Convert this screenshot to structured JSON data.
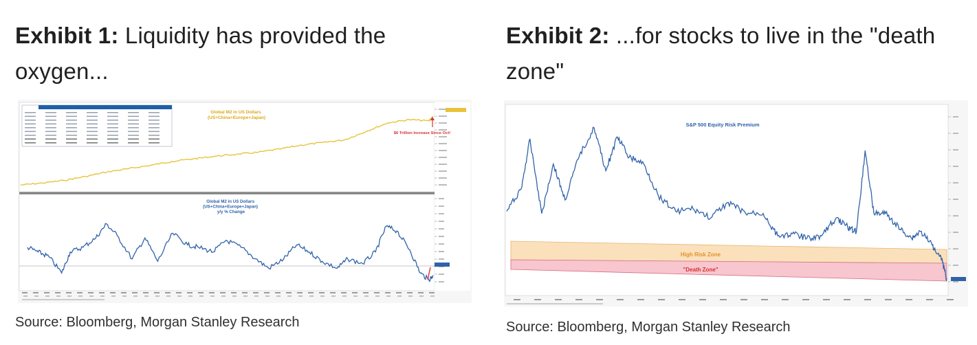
{
  "exhibit1": {
    "label": "Exhibit 1:",
    "title": "Liquidity has provided the oxygen...",
    "source": "Source: Bloomberg, Morgan Stanley Research"
  },
  "exhibit2": {
    "label": "Exhibit 2:",
    "title": "...for stocks to live in the \"death zone\"",
    "source": "Source: Bloomberg, Morgan Stanley Research"
  },
  "colors": {
    "m2_level": "#e8c33a",
    "m2_yoy": "#2f62a8",
    "erp": "#2f62a8",
    "high_risk_fill": "#fbe0bc",
    "death_fill": "#f7c6cf",
    "annotation_red": "#d9302f",
    "header_blue": "#1f5fa8"
  },
  "chart_data": [
    {
      "id": "global-m2-level",
      "type": "line",
      "title": "Global M2 in US Dollars (US+China+Europe+Japan)",
      "annotation": "$6 Trillion Increase Since Oct!",
      "x": [
        2004,
        2005,
        2006,
        2007,
        2008,
        2009,
        2010,
        2011,
        2012,
        2013,
        2014,
        2015,
        2016,
        2017,
        2018,
        2019,
        2020,
        2021,
        2022,
        2022.9,
        2023.1
      ],
      "series": [
        {
          "values": [
            20000,
            21500,
            23500,
            26500,
            30000,
            32500,
            35000,
            38000,
            40000,
            42000,
            43500,
            45000,
            47500,
            50500,
            52500,
            54500,
            61000,
            67500,
            70000,
            69000,
            72500
          ]
        }
      ],
      "ylim": [
        18000,
        80000
      ]
    },
    {
      "id": "global-m2-yoy",
      "type": "line",
      "title": "Global M2 in US Dollars (US+China+Europe+Japan) y/y % Change",
      "x": [
        2004,
        2004.5,
        2005,
        2005.6,
        2006,
        2006.6,
        2007.2,
        2007.7,
        2008.2,
        2008.9,
        2009.5,
        2010.1,
        2010.8,
        2011.5,
        2012.0,
        2012.7,
        2013.3,
        2014.0,
        2014.7,
        2015.3,
        2016.0,
        2016.6,
        2017.2,
        2017.8,
        2018.5,
        2019.0,
        2019.7,
        2020.3,
        2020.8,
        2021.3,
        2021.9,
        2022.4,
        2022.8,
        2023.0
      ],
      "series": [
        {
          "values": [
            8,
            6,
            4,
            -3,
            6,
            8,
            12,
            18,
            13,
            3,
            12,
            2,
            14,
            9,
            8,
            6,
            11,
            8,
            3,
            -1,
            3,
            9,
            6,
            2,
            -1,
            3,
            1,
            6,
            17,
            15,
            7,
            -3,
            -6,
            -4
          ]
        }
      ],
      "ylim": [
        -10,
        30
      ]
    },
    {
      "id": "sp500-erp",
      "type": "line",
      "title": "S&P 500 Equity Risk Premium",
      "annotations": [
        "High Risk Zone",
        "\"Death Zone\""
      ],
      "x": [
        2008.0,
        2008.5,
        2008.8,
        2009.2,
        2009.6,
        2010.0,
        2010.5,
        2011.0,
        2011.4,
        2011.8,
        2012.2,
        2012.7,
        2013.2,
        2013.8,
        2014.4,
        2015.0,
        2015.6,
        2016.2,
        2016.8,
        2017.3,
        2017.8,
        2018.3,
        2018.8,
        2019.3,
        2019.7,
        2020.0,
        2020.3,
        2020.6,
        2021.0,
        2021.5,
        2021.9,
        2022.2,
        2022.6,
        2022.9,
        2023.1
      ],
      "series": [
        {
          "values": [
            4.5,
            5.5,
            7.7,
            4.4,
            6.6,
            5.0,
            7.0,
            8.2,
            6.3,
            7.8,
            6.9,
            6.6,
            5.2,
            4.5,
            4.6,
            4.2,
            4.9,
            4.4,
            4.4,
            3.4,
            3.5,
            3.3,
            3.4,
            4.2,
            3.8,
            3.6,
            7.2,
            4.4,
            4.4,
            3.7,
            3.3,
            3.6,
            3.0,
            2.5,
            1.5
          ]
        }
      ],
      "ylim": [
        1,
        9
      ]
    }
  ]
}
